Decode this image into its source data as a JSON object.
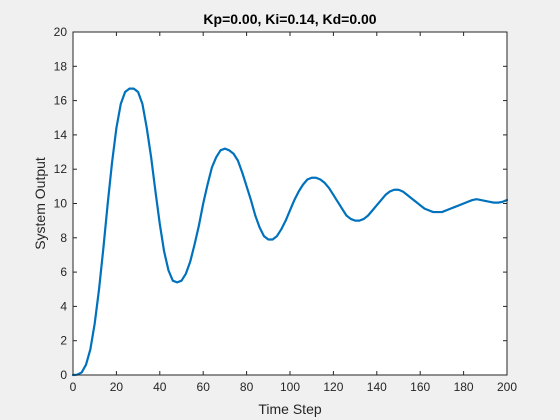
{
  "chart_data": {
    "type": "line",
    "title": "Kp=0.00, Ki=0.14, Kd=0.00",
    "xlabel": "Time Step",
    "ylabel": "System Output",
    "xlim": [
      0,
      200
    ],
    "ylim": [
      0,
      20
    ],
    "xticks": [
      0,
      20,
      40,
      60,
      80,
      100,
      120,
      140,
      160,
      180,
      200
    ],
    "yticks": [
      0,
      2,
      4,
      6,
      8,
      10,
      12,
      14,
      16,
      18,
      20
    ],
    "grid": false,
    "series": [
      {
        "color": "#0072bd",
        "x": [
          0,
          2,
          4,
          6,
          8,
          10,
          12,
          14,
          16,
          18,
          20,
          22,
          24,
          26,
          28,
          30,
          32,
          34,
          36,
          38,
          40,
          42,
          44,
          46,
          48,
          50,
          52,
          54,
          56,
          58,
          60,
          62,
          64,
          66,
          68,
          70,
          72,
          74,
          76,
          78,
          80,
          82,
          84,
          86,
          88,
          90,
          92,
          94,
          96,
          98,
          100,
          102,
          104,
          106,
          108,
          110,
          112,
          114,
          116,
          118,
          120,
          122,
          124,
          126,
          128,
          130,
          132,
          134,
          136,
          138,
          140,
          142,
          144,
          146,
          148,
          150,
          152,
          154,
          156,
          158,
          160,
          162,
          164,
          166,
          168,
          170,
          172,
          174,
          176,
          178,
          180,
          182,
          184,
          186,
          188,
          190,
          192,
          194,
          196,
          198,
          200
        ],
        "y": [
          0.0,
          0.02,
          0.15,
          0.6,
          1.5,
          3.0,
          5.0,
          7.4,
          10.0,
          12.4,
          14.4,
          15.8,
          16.5,
          16.7,
          16.7,
          16.5,
          15.8,
          14.4,
          12.7,
          10.7,
          8.8,
          7.2,
          6.1,
          5.5,
          5.4,
          5.5,
          5.9,
          6.6,
          7.6,
          8.7,
          10.0,
          11.1,
          12.1,
          12.7,
          13.1,
          13.2,
          13.1,
          12.9,
          12.5,
          11.8,
          11.0,
          10.2,
          9.3,
          8.6,
          8.1,
          7.9,
          7.9,
          8.1,
          8.5,
          9.0,
          9.6,
          10.2,
          10.7,
          11.1,
          11.4,
          11.5,
          11.5,
          11.4,
          11.2,
          10.9,
          10.5,
          10.1,
          9.7,
          9.3,
          9.1,
          9.0,
          9.0,
          9.1,
          9.3,
          9.6,
          9.9,
          10.2,
          10.5,
          10.7,
          10.8,
          10.8,
          10.7,
          10.5,
          10.3,
          10.1,
          9.9,
          9.7,
          9.6,
          9.5,
          9.5,
          9.5,
          9.6,
          9.7,
          9.8,
          9.9,
          10.0,
          10.1,
          10.2,
          10.25,
          10.2,
          10.15,
          10.1,
          10.05,
          10.05,
          10.1,
          10.2
        ]
      }
    ]
  }
}
